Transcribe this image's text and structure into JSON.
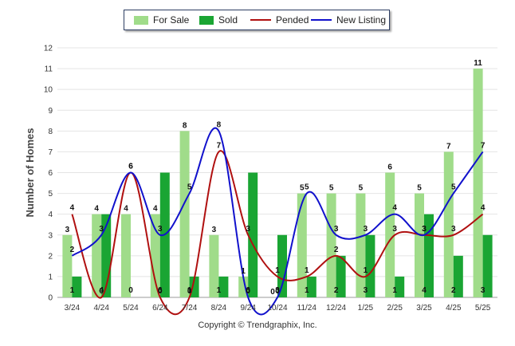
{
  "chart_data": {
    "type": "bar",
    "categories": [
      "3/24",
      "4/24",
      "5/24",
      "6/24",
      "7/24",
      "8/24",
      "9/24",
      "10/24",
      "11/24",
      "12/24",
      "1/25",
      "2/25",
      "3/25",
      "4/25",
      "5/25"
    ],
    "ylabel": "Number of Homes",
    "ylim": [
      0,
      12
    ],
    "yticks": [
      0,
      1,
      2,
      3,
      4,
      5,
      6,
      7,
      8,
      9,
      10,
      11,
      12
    ],
    "grid": true,
    "legend": "top-center",
    "series": [
      {
        "name": "For Sale",
        "kind": "bar",
        "color": "#a0dc8a",
        "values": [
          3,
          4,
          4,
          4,
          8,
          3,
          1,
          0,
          5,
          5,
          5,
          6,
          5,
          7,
          11
        ]
      },
      {
        "name": "Sold",
        "kind": "bar",
        "color": "#1aa533",
        "values": [
          1,
          4,
          0,
          6,
          1,
          1,
          6,
          3,
          1,
          2,
          3,
          1,
          4,
          2,
          3
        ]
      },
      {
        "name": "Pended",
        "kind": "line",
        "color": "#b01010",
        "values": [
          4,
          0,
          6,
          0,
          0,
          7,
          3,
          1,
          1,
          2,
          1,
          3,
          3,
          3,
          4
        ]
      },
      {
        "name": "New Listing",
        "kind": "line",
        "color": "#1111cc",
        "values": [
          2,
          3,
          6,
          3,
          5,
          8,
          0,
          0,
          5,
          3,
          3,
          4,
          3,
          5,
          7
        ]
      }
    ]
  },
  "legend": {
    "items": [
      {
        "label": "For Sale",
        "color": "#a0dc8a"
      },
      {
        "label": "Sold",
        "color": "#1aa533"
      },
      {
        "label": "Pended",
        "color": "#b01010"
      },
      {
        "label": "New Listing",
        "color": "#1111cc"
      }
    ]
  },
  "footer": {
    "copyright": "Copyright © Trendgraphix, Inc."
  }
}
